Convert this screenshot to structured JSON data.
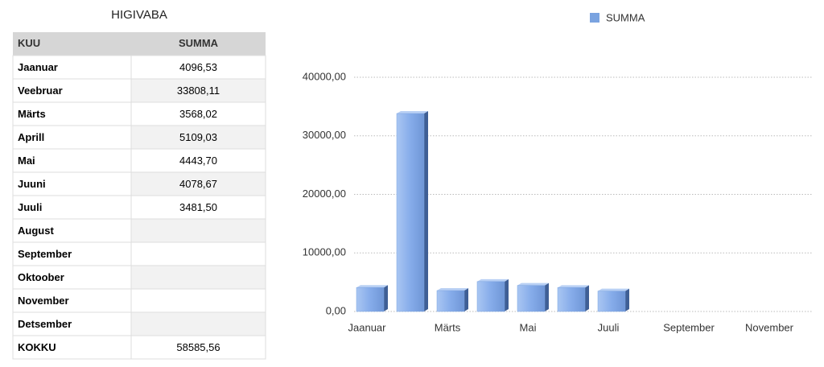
{
  "table": {
    "title": "HIGIVABA",
    "header": [
      "KUU",
      "SUMMA"
    ],
    "rows": [
      [
        "Jaanuar",
        "4096,53"
      ],
      [
        "Veebruar",
        "33808,11"
      ],
      [
        "Märts",
        "3568,02"
      ],
      [
        "Aprill",
        "5109,03"
      ],
      [
        "Mai",
        "4443,70"
      ],
      [
        "Juuni",
        "4078,67"
      ],
      [
        "Juuli",
        "3481,50"
      ],
      [
        "August",
        null
      ],
      [
        "September",
        null
      ],
      [
        "Oktoober",
        null
      ],
      [
        "November",
        null
      ],
      [
        "Detsember",
        null
      ],
      [
        "KOKKU",
        "58585,56"
      ]
    ]
  },
  "chart_data": {
    "type": "bar",
    "categories": [
      "Jaanuar",
      null,
      "Märts",
      null,
      "Mai",
      null,
      "Juuli",
      null,
      "September",
      null,
      "November",
      null
    ],
    "series": [
      {
        "name": "SUMMA",
        "color": "#7aa3e0",
        "values": [
          4096.53,
          33808.11,
          3568.02,
          5109.03,
          4443.7,
          4078.67,
          3481.5,
          null,
          null,
          null,
          null,
          null
        ]
      }
    ],
    "ylim": [
      0,
      40000
    ],
    "yticks": [
      {
        "value": 0,
        "label": "0,00"
      },
      {
        "value": 10000,
        "label": "10000,00"
      },
      {
        "value": 20000,
        "label": "20000,00"
      },
      {
        "value": 30000,
        "label": "30000,00"
      },
      {
        "value": 40000,
        "label": "40000,00"
      }
    ],
    "grid": true,
    "legend": "top"
  }
}
